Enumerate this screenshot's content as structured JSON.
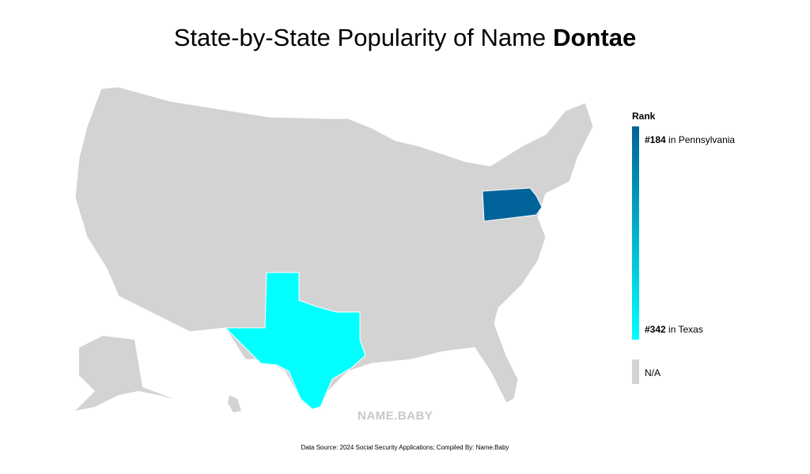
{
  "header": {
    "title": "State-by-State Popularity of Name",
    "name": "Dontae"
  },
  "legend": {
    "title": "Rank",
    "top": {
      "rank": "#184",
      "state": "in Pennsylvania",
      "color": "#00639a"
    },
    "bottom": {
      "rank": "#342",
      "state": "in Texas",
      "color": "#00ffff"
    },
    "na": {
      "label": "N/A",
      "color": "#d3d3d3"
    }
  },
  "watermark": "NAME.BABY",
  "footer": "Data Source: 2024 Social Security Applications; Compiled By: Name.Baby"
}
